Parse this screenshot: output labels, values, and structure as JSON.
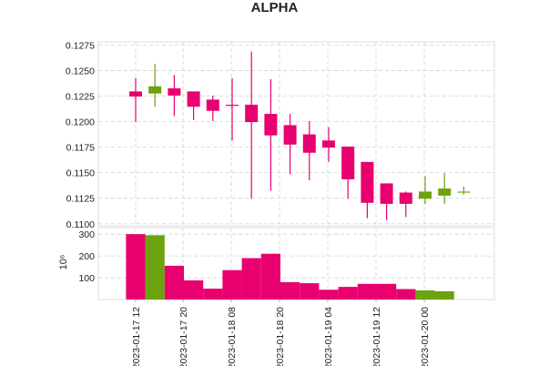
{
  "colors": {
    "up": "#6BA40E",
    "down": "#E8006E",
    "grid": "#d3d3d3",
    "axis": "#dddddd"
  },
  "chart_data": {
    "type": "candlestick",
    "title": "ALPHA",
    "grid": true,
    "x_tick_labels": [
      "2023-01-17 12",
      "2023-01-17 20",
      "2023-01-18 08",
      "2023-01-18 20",
      "2023-01-19 04",
      "2023-01-19 12",
      "2023-01-20 00"
    ],
    "price": {
      "ylim": [
        0.1098,
        0.1278
      ],
      "y_tick_labels": [
        "0.1100",
        "0.1125",
        "0.1150",
        "0.1175",
        "0.1200",
        "0.1225",
        "0.1250",
        "0.1275"
      ],
      "candles": [
        {
          "open": 0.12295,
          "high": 0.12425,
          "low": 0.11995,
          "close": 0.12245
        },
        {
          "open": 0.12275,
          "high": 0.12565,
          "low": 0.12145,
          "close": 0.12345
        },
        {
          "open": 0.12325,
          "high": 0.12455,
          "low": 0.12055,
          "close": 0.12255
        },
        {
          "open": 0.12295,
          "high": 0.12295,
          "low": 0.12015,
          "close": 0.12145
        },
        {
          "open": 0.12215,
          "high": 0.12255,
          "low": 0.12005,
          "close": 0.12105
        },
        {
          "open": 0.12165,
          "high": 0.12425,
          "low": 0.11815,
          "close": 0.12155
        },
        {
          "open": 0.12165,
          "high": 0.12685,
          "low": 0.11245,
          "close": 0.11995
        },
        {
          "open": 0.12075,
          "high": 0.12415,
          "low": 0.11325,
          "close": 0.11865
        },
        {
          "open": 0.11965,
          "high": 0.12075,
          "low": 0.11485,
          "close": 0.11775
        },
        {
          "open": 0.11875,
          "high": 0.12005,
          "low": 0.11425,
          "close": 0.11695
        },
        {
          "open": 0.11815,
          "high": 0.11945,
          "low": 0.11605,
          "close": 0.11745
        },
        {
          "open": 0.11755,
          "high": 0.11755,
          "low": 0.11245,
          "close": 0.11435
        },
        {
          "open": 0.11605,
          "high": 0.11605,
          "low": 0.11055,
          "close": 0.11205
        },
        {
          "open": 0.11395,
          "high": 0.11395,
          "low": 0.11035,
          "close": 0.11195
        },
        {
          "open": 0.11305,
          "high": 0.11315,
          "low": 0.11065,
          "close": 0.11195
        },
        {
          "open": 0.11245,
          "high": 0.11465,
          "low": 0.11195,
          "close": 0.11315
        },
        {
          "open": 0.11275,
          "high": 0.11495,
          "low": 0.11195,
          "close": 0.11345
        },
        {
          "open": 0.11305,
          "high": 0.11365,
          "low": 0.11285,
          "close": 0.11315
        }
      ]
    },
    "volume": {
      "ylabel": "10⁶",
      "ylim": [
        0,
        330
      ],
      "y_tick_labels": [
        "100",
        "200",
        "300"
      ],
      "values": [
        300,
        295,
        155,
        88,
        50,
        135,
        190,
        210,
        80,
        75,
        45,
        58,
        72,
        72,
        48,
        42,
        38,
        0
      ]
    }
  }
}
